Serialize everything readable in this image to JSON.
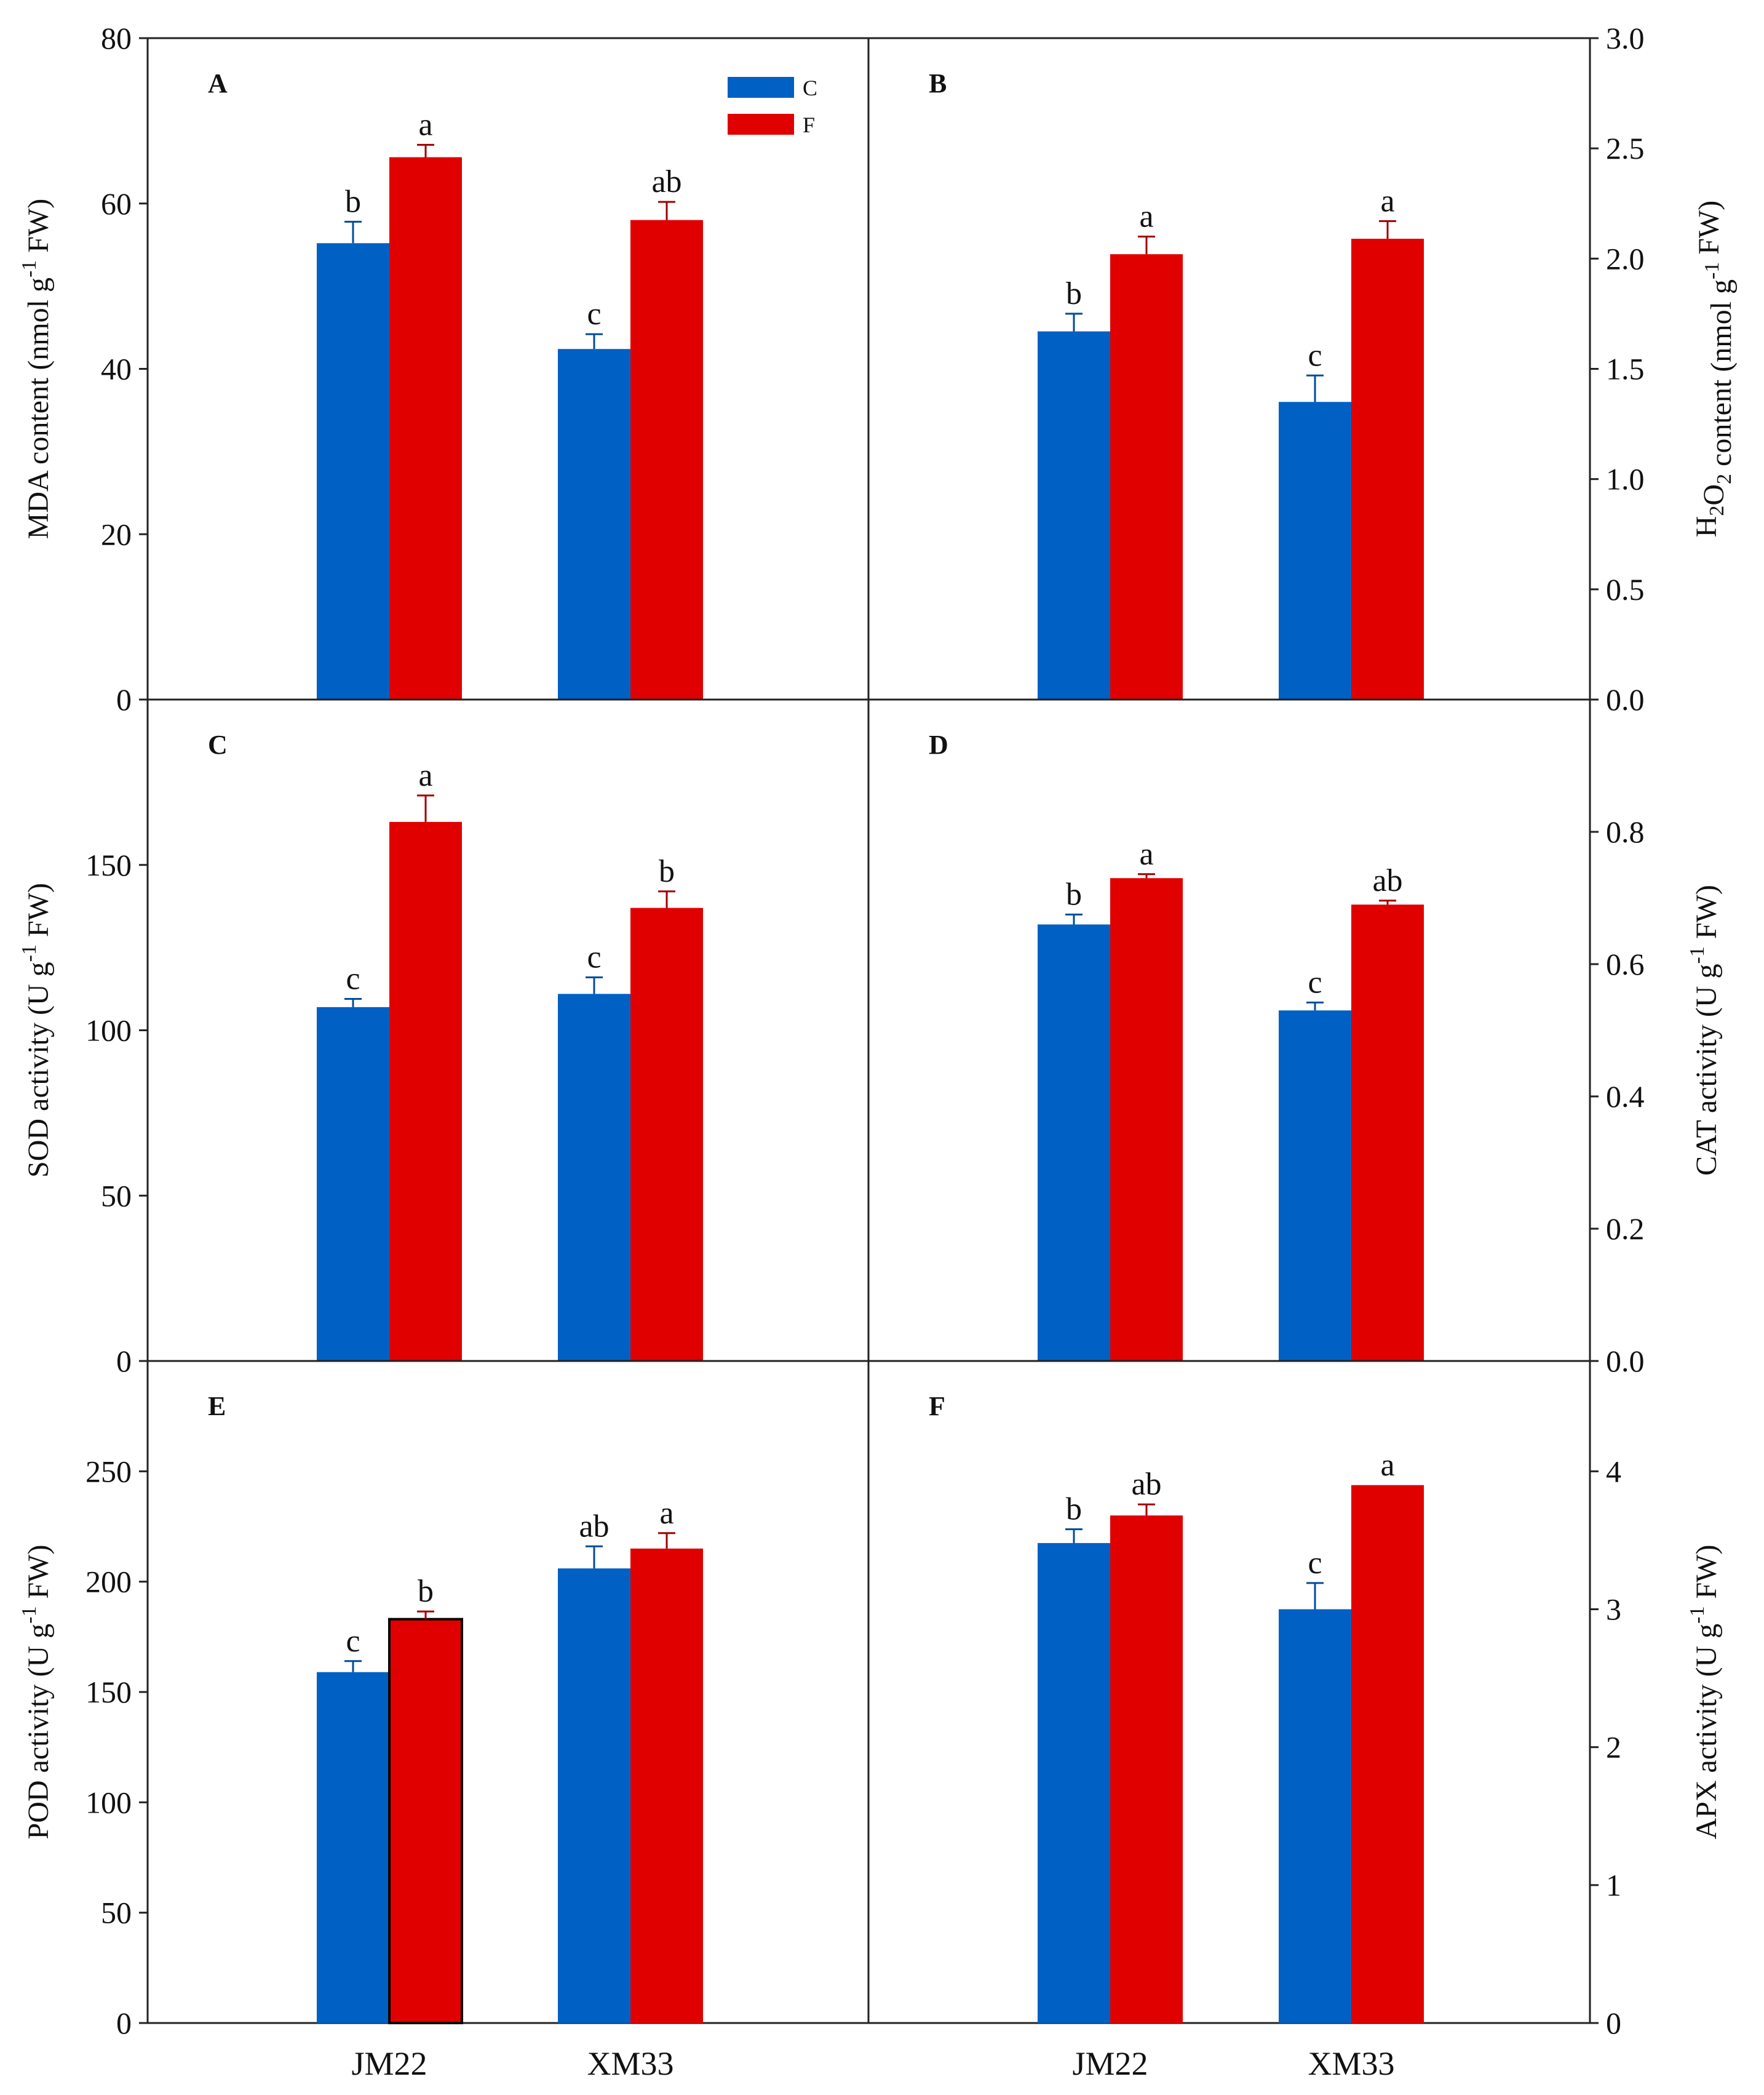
{
  "legend": {
    "items": [
      {
        "label": "C",
        "color": "#0060c4"
      },
      {
        "label": "F",
        "color": "#e00000"
      }
    ]
  },
  "categories": [
    "JM22",
    "XM33"
  ],
  "chart_data": [
    {
      "panel": "A",
      "type": "bar",
      "axis_side": "left",
      "ylabel": "MDA content (nmol g-1 FW)",
      "ylim": [
        0,
        80
      ],
      "yticks": [
        "0",
        "20",
        "40",
        "60",
        "80"
      ],
      "categories": [
        "JM22",
        "XM33"
      ],
      "series": [
        {
          "name": "C",
          "values": [
            55.2,
            42.4
          ],
          "errors": [
            2.6,
            1.8
          ],
          "letters": [
            "b",
            "c"
          ]
        },
        {
          "name": "F",
          "values": [
            65.6,
            58.0
          ],
          "errors": [
            1.5,
            2.2
          ],
          "letters": [
            "a",
            "ab"
          ]
        }
      ]
    },
    {
      "panel": "B",
      "type": "bar",
      "axis_side": "right",
      "ylabel": "H2O2 content (nmol g-1 FW)",
      "ylim": [
        0,
        3.0
      ],
      "yticks": [
        "0.0",
        "0.5",
        "1.0",
        "1.5",
        "2.0",
        "2.5",
        "3.0"
      ],
      "categories": [
        "JM22",
        "XM33"
      ],
      "series": [
        {
          "name": "C",
          "values": [
            1.67,
            1.35
          ],
          "errors": [
            0.08,
            0.12
          ],
          "letters": [
            "b",
            "c"
          ]
        },
        {
          "name": "F",
          "values": [
            2.02,
            2.09
          ],
          "errors": [
            0.08,
            0.08
          ],
          "letters": [
            "a",
            "a"
          ]
        }
      ]
    },
    {
      "panel": "C",
      "type": "bar",
      "axis_side": "left",
      "ylabel": "SOD activity (U g-1 FW)",
      "ylim": [
        0,
        200
      ],
      "yticks": [
        "0",
        "50",
        "100",
        "150"
      ],
      "categories": [
        "JM22",
        "XM33"
      ],
      "series": [
        {
          "name": "C",
          "values": [
            107,
            111
          ],
          "errors": [
            2.5,
            5.0
          ],
          "letters": [
            "c",
            "c"
          ]
        },
        {
          "name": "F",
          "values": [
            163,
            137
          ],
          "errors": [
            8.0,
            5.0
          ],
          "letters": [
            "a",
            "b"
          ]
        }
      ]
    },
    {
      "panel": "D",
      "type": "bar",
      "axis_side": "right",
      "ylabel": "CAT activity (U g-1 FW)",
      "ylim": [
        0,
        1.0
      ],
      "yticks": [
        "0.0",
        "0.2",
        "0.4",
        "0.6",
        "0.8"
      ],
      "categories": [
        "JM22",
        "XM33"
      ],
      "series": [
        {
          "name": "C",
          "values": [
            0.66,
            0.53
          ],
          "errors": [
            0.015,
            0.012
          ],
          "letters": [
            "b",
            "c"
          ]
        },
        {
          "name": "F",
          "values": [
            0.73,
            0.69
          ],
          "errors": [
            0.006,
            0.006
          ],
          "letters": [
            "a",
            "ab"
          ]
        }
      ]
    },
    {
      "panel": "E",
      "type": "bar",
      "axis_side": "left",
      "ylabel": "POD activity (U g-1 FW)",
      "ylim": [
        0,
        300
      ],
      "yticks": [
        "0",
        "50",
        "100",
        "150",
        "200",
        "250"
      ],
      "categories": [
        "JM22",
        "XM33"
      ],
      "series": [
        {
          "name": "C",
          "values": [
            159,
            206
          ],
          "errors": [
            5.0,
            10.0
          ],
          "letters": [
            "c",
            "ab"
          ]
        },
        {
          "name": "F",
          "values": [
            183,
            215
          ],
          "errors": [
            3.5,
            7.0
          ],
          "letters": [
            "b",
            "a"
          ]
        }
      ]
    },
    {
      "panel": "F",
      "type": "bar",
      "axis_side": "right",
      "ylabel": "APX activity (U g-1 FW)",
      "ylim": [
        0,
        4.8
      ],
      "yticks": [
        "0",
        "1",
        "2",
        "3",
        "4"
      ],
      "categories": [
        "JM22",
        "XM33"
      ],
      "series": [
        {
          "name": "C",
          "values": [
            3.48,
            3.0
          ],
          "errors": [
            0.1,
            0.19
          ],
          "letters": [
            "b",
            "c"
          ]
        },
        {
          "name": "F",
          "values": [
            3.68,
            3.9
          ],
          "errors": [
            0.08,
            0.0
          ],
          "letters": [
            "ab",
            "a"
          ]
        }
      ]
    }
  ]
}
